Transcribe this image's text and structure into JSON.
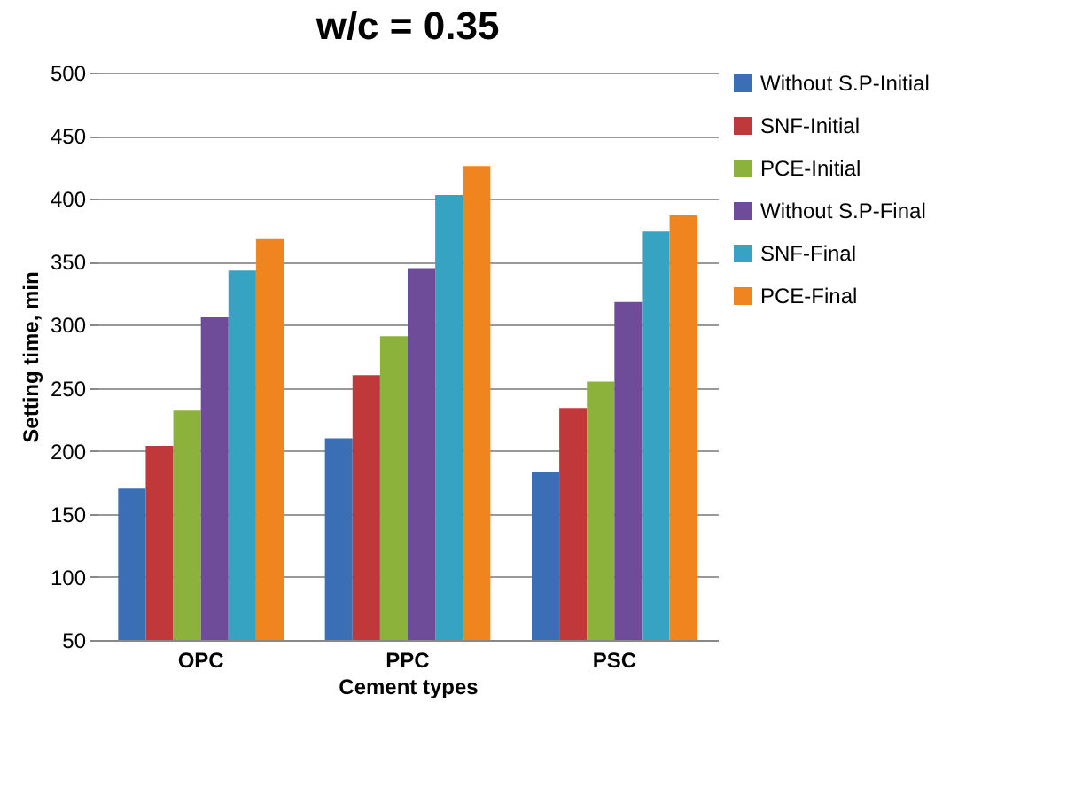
{
  "chart_data": {
    "type": "bar",
    "title": "w/c = 0.35",
    "xlabel": "Cement types",
    "ylabel": "Setting time, min",
    "categories": [
      "OPC",
      "PPC",
      "PSC"
    ],
    "series": [
      {
        "name": "Without S.P-Initial",
        "color": "#3a6fb5",
        "values": [
          170,
          210,
          183
        ]
      },
      {
        "name": "SNF-Initial",
        "color": "#c0383a",
        "values": [
          204,
          260,
          234
        ]
      },
      {
        "name": "PCE-Initial",
        "color": "#8db23c",
        "values": [
          232,
          291,
          255
        ]
      },
      {
        "name": "Without S.P-Final",
        "color": "#6e4c9a",
        "values": [
          306,
          345,
          318
        ]
      },
      {
        "name": "SNF-Final",
        "color": "#36a3c2",
        "values": [
          343,
          403,
          374
        ]
      },
      {
        "name": "PCE-Final",
        "color": "#f0841f",
        "values": [
          368,
          426,
          387
        ]
      }
    ],
    "ylim": [
      50,
      500
    ],
    "yticks": [
      50,
      100,
      150,
      200,
      250,
      300,
      350,
      400,
      450,
      500
    ],
    "grid": "y",
    "legend": "right"
  }
}
